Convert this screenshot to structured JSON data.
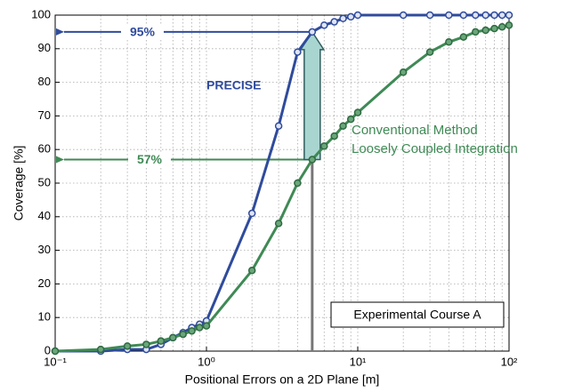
{
  "chart_data": {
    "type": "line",
    "xlabel": "Positional Errors on a 2D Plane [m]",
    "ylabel": "Coverage [%]",
    "x": [
      0.1,
      0.2,
      0.3,
      0.4,
      0.5,
      0.6,
      0.7,
      0.8,
      0.9,
      1,
      2,
      3,
      4,
      5,
      6,
      7,
      8,
      9,
      10,
      20,
      30,
      40,
      50,
      60,
      70,
      80,
      90,
      100
    ],
    "series": [
      {
        "name": "PRECISE",
        "color": "#2f4b9c",
        "values": [
          0,
          0,
          0.5,
          0.5,
          2,
          4,
          5.5,
          7,
          8,
          9,
          41,
          67,
          89,
          95,
          97,
          98,
          99,
          99.5,
          100,
          100,
          100,
          100,
          100,
          100,
          100,
          100,
          100,
          100
        ]
      },
      {
        "name": "Conventional Method",
        "color": "#3f8a55",
        "values": [
          0,
          0.5,
          1.5,
          2,
          3,
          4,
          5,
          6,
          7,
          7.5,
          24,
          38,
          50,
          57,
          61,
          64,
          67,
          69,
          71,
          83,
          89,
          92,
          93.5,
          95,
          95.5,
          96,
          96.5,
          97
        ]
      }
    ],
    "xscale": "log",
    "xlim": [
      0.1,
      100
    ],
    "ylim": [
      0,
      100
    ],
    "xticks": [
      {
        "value": 0.1,
        "label": "10⁻¹"
      },
      {
        "value": 1,
        "label": "10⁰"
      },
      {
        "value": 10,
        "label": "10¹"
      },
      {
        "value": 100,
        "label": "10²"
      }
    ],
    "yticks": [
      0,
      10,
      20,
      30,
      40,
      50,
      60,
      70,
      80,
      90,
      100
    ],
    "grid": true,
    "annotations": [
      {
        "text": "95%",
        "value": 95,
        "x": 5,
        "color": "#2f4b9c"
      },
      {
        "text": "57%",
        "value": 57,
        "x": 5,
        "color": "#3f8a55"
      }
    ],
    "labels": [
      "PRECISE",
      "Conventional Method",
      "Loosely Coupled Integration",
      "Experimental Course A"
    ]
  }
}
